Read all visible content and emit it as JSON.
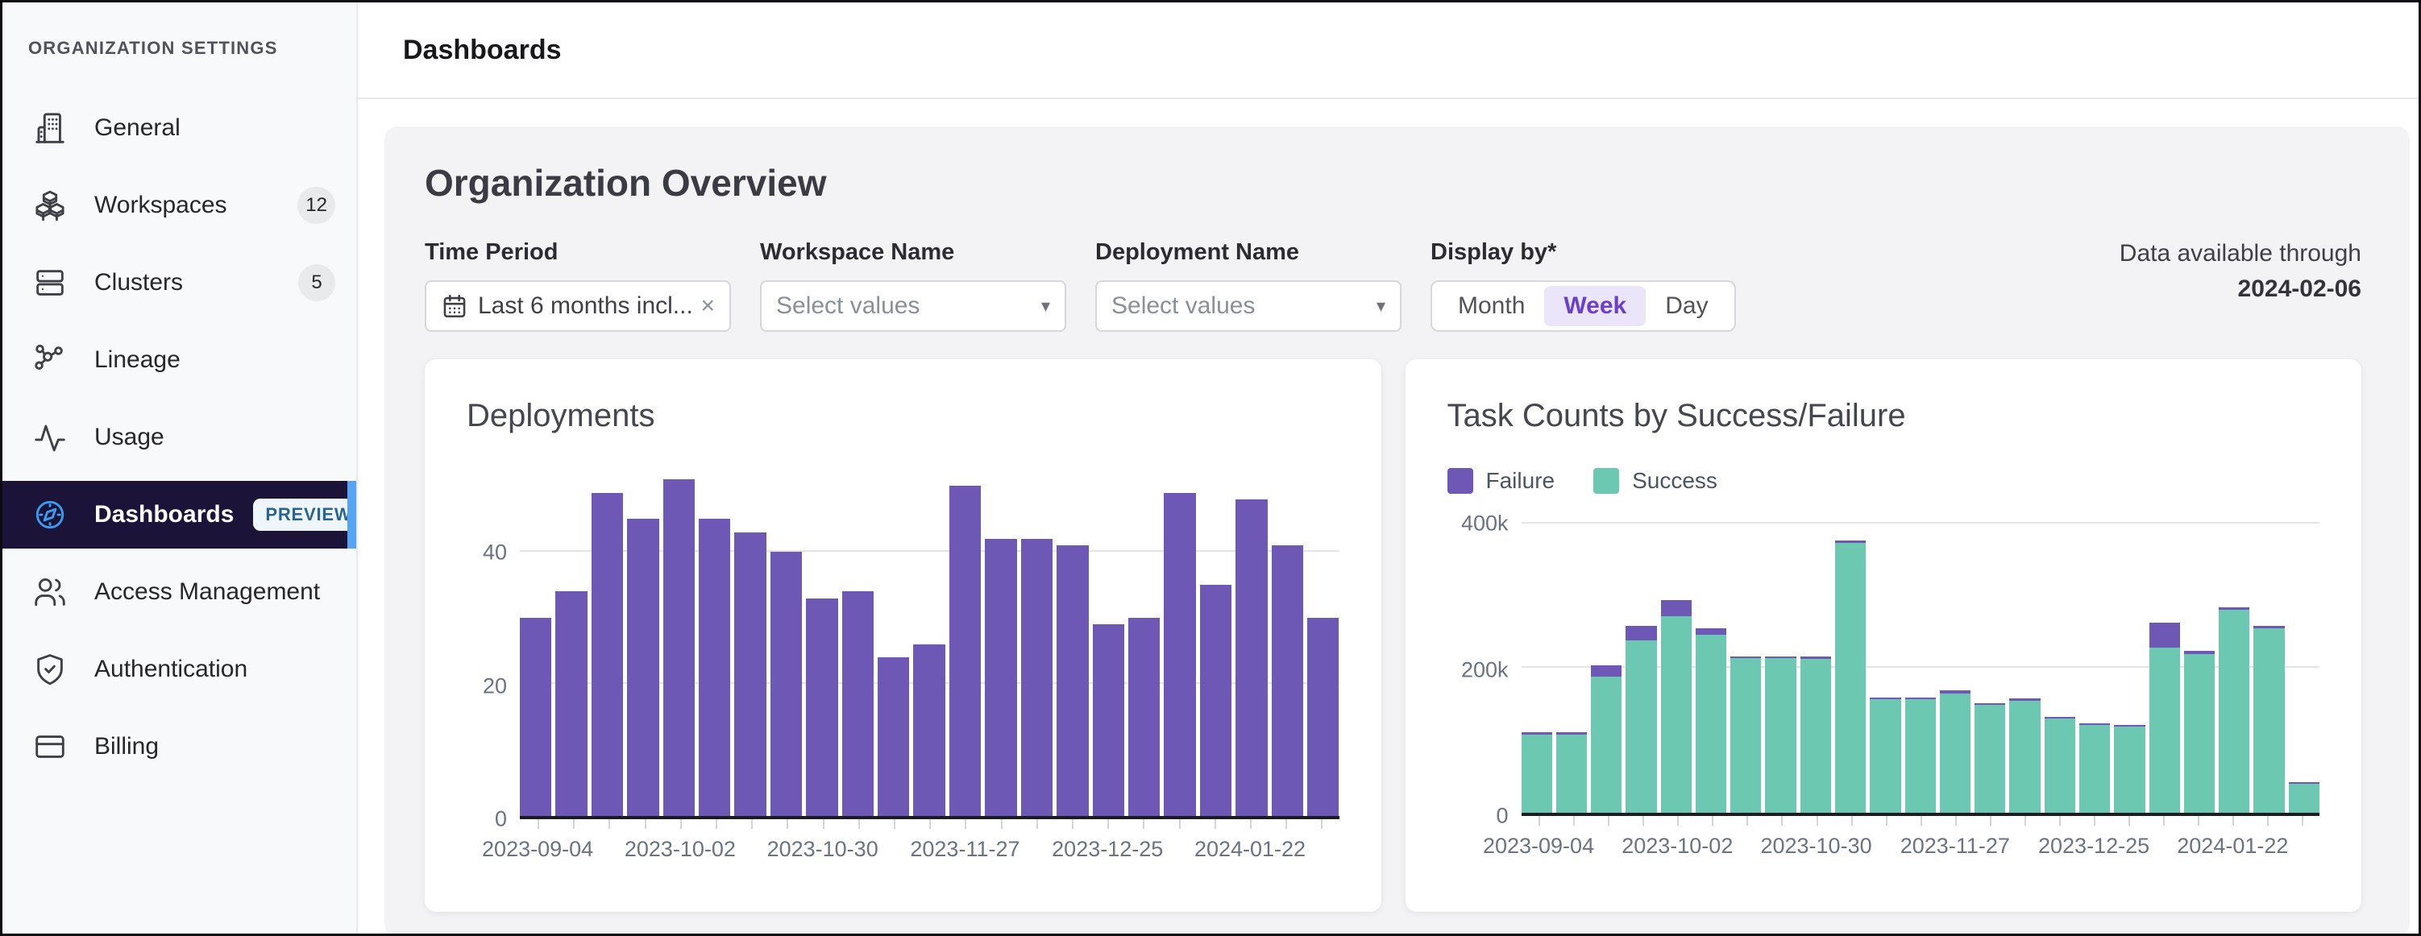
{
  "sidebar": {
    "title": "ORGANIZATION SETTINGS",
    "items": [
      {
        "label": "General",
        "icon": "building-icon"
      },
      {
        "label": "Workspaces",
        "icon": "cubes-icon",
        "badge": "12"
      },
      {
        "label": "Clusters",
        "icon": "servers-icon",
        "badge": "5"
      },
      {
        "label": "Lineage",
        "icon": "lineage-icon"
      },
      {
        "label": "Usage",
        "icon": "activity-icon"
      },
      {
        "label": "Dashboards",
        "icon": "compass-icon",
        "preview": "PREVIEW",
        "selected": true
      },
      {
        "label": "Access Management",
        "icon": "users-icon"
      },
      {
        "label": "Authentication",
        "icon": "shield-check-icon"
      },
      {
        "label": "Billing",
        "icon": "credit-card-icon"
      }
    ],
    "selected_colors": {
      "row_bg": "#1b1438",
      "accent": "#57a4f2",
      "icon": "#3b9df1"
    }
  },
  "header": {
    "title": "Dashboards"
  },
  "overview": {
    "title": "Organization Overview",
    "filters": {
      "time_period": {
        "label": "Time Period",
        "value": "Last 6 months incl...",
        "clear_icon": "×",
        "icon": "calendar-icon"
      },
      "workspace": {
        "label": "Workspace Name",
        "placeholder": "Select values",
        "caret_icon": "▾"
      },
      "deployment": {
        "label": "Deployment Name",
        "placeholder": "Select values",
        "caret_icon": "▾"
      },
      "display_by": {
        "label": "Display by",
        "required_mark": "*",
        "options": [
          "Month",
          "Week",
          "Day"
        ],
        "selected": "Week"
      }
    },
    "data_available": {
      "line1": "Data available through",
      "date": "2024-02-06"
    }
  },
  "chart_data": [
    {
      "type": "bar",
      "title": "Deployments",
      "categories": [
        "2023-09-04",
        "2023-09-11",
        "2023-09-18",
        "2023-09-25",
        "2023-10-02",
        "2023-10-09",
        "2023-10-16",
        "2023-10-23",
        "2023-10-30",
        "2023-11-06",
        "2023-11-13",
        "2023-11-20",
        "2023-11-27",
        "2023-12-04",
        "2023-12-11",
        "2023-12-18",
        "2023-12-25",
        "2024-01-01",
        "2024-01-08",
        "2024-01-15",
        "2024-01-22",
        "2024-01-29",
        "2024-02-05"
      ],
      "values": [
        30,
        34,
        49,
        45,
        51,
        45,
        43,
        40,
        33,
        34,
        24,
        26,
        50,
        42,
        42,
        41,
        29,
        30,
        49,
        35,
        48,
        41,
        30
      ],
      "bar_color": "#6d59b5",
      "ylim": [
        0,
        52
      ],
      "yticks": [
        {
          "v": 0,
          "label": "0"
        },
        {
          "v": 20,
          "label": "20"
        },
        {
          "v": 40,
          "label": "40"
        }
      ],
      "xtick_every": 4,
      "xtick_labels_shown": [
        "2023-09-04",
        "2023-10-02",
        "2023-10-30",
        "2023-11-27",
        "2023-12-25",
        "2024-01-22"
      ],
      "grid": true,
      "legend": "none",
      "xlabel": "",
      "ylabel": ""
    },
    {
      "type": "bar",
      "stacked": true,
      "title": "Task Counts by Success/Failure",
      "categories": [
        "2023-09-04",
        "2023-09-11",
        "2023-09-18",
        "2023-09-25",
        "2023-10-02",
        "2023-10-09",
        "2023-10-16",
        "2023-10-23",
        "2023-10-30",
        "2023-11-06",
        "2023-11-13",
        "2023-11-20",
        "2023-11-27",
        "2023-12-04",
        "2023-12-11",
        "2023-12-18",
        "2023-12-25",
        "2024-01-01",
        "2024-01-08",
        "2024-01-15",
        "2024-01-22",
        "2024-01-29",
        "2024-02-05"
      ],
      "series": [
        {
          "name": "Failure",
          "color": "#6d59b5",
          "values": [
            3000,
            3000,
            16000,
            20000,
            22000,
            9000,
            2500,
            2500,
            3000,
            3000,
            2500,
            2500,
            4000,
            3000,
            3000,
            2500,
            2500,
            2500,
            35000,
            4000,
            3000,
            4000,
            2000
          ]
        },
        {
          "name": "Success",
          "color": "#6dc8b2",
          "values": [
            108000,
            108000,
            188000,
            238000,
            272000,
            246000,
            214000,
            214000,
            213000,
            373000,
            157000,
            157000,
            165000,
            149000,
            155000,
            130000,
            121000,
            119000,
            228000,
            220000,
            281000,
            255000,
            40000
          ]
        }
      ],
      "ylim": [
        0,
        430000
      ],
      "yticks": [
        {
          "v": 0,
          "label": "0"
        },
        {
          "v": 200000,
          "label": "200k"
        },
        {
          "v": 400000,
          "label": "400k"
        }
      ],
      "xtick_every": 4,
      "xtick_labels_shown": [
        "2023-09-04",
        "2023-10-02",
        "2023-10-30",
        "2023-11-27",
        "2023-12-25",
        "2024-01-22"
      ],
      "grid": true,
      "legend": "top-left",
      "xlabel": "",
      "ylabel": ""
    }
  ]
}
